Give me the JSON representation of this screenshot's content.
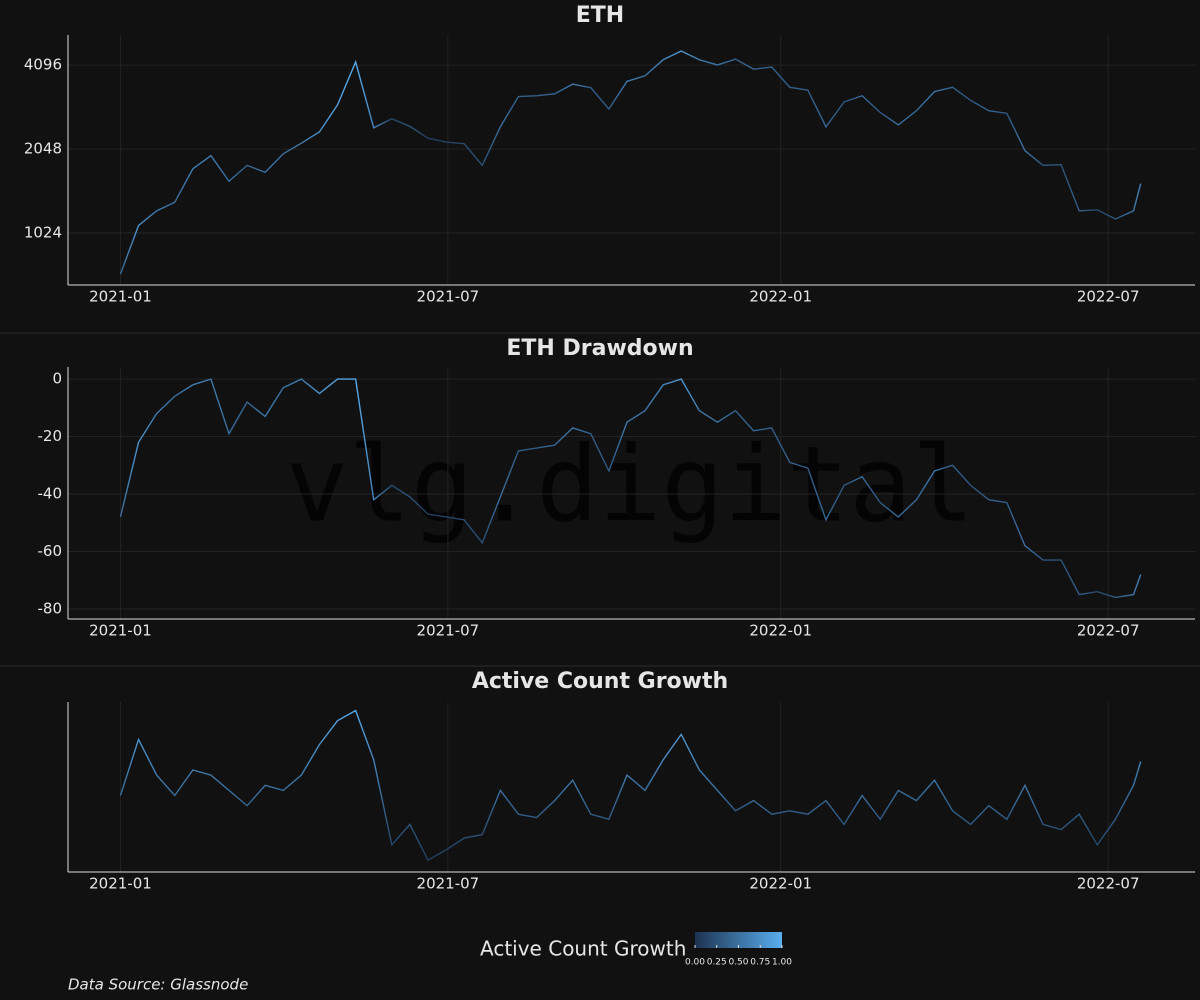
{
  "chart_data": [
    {
      "type": "line",
      "title": "ETH",
      "log_y": true,
      "grid": true,
      "xlim": [
        "2020-12-03",
        "2022-08-18"
      ],
      "xticks": [
        "2021-01",
        "2021-07",
        "2022-01",
        "2022-07"
      ],
      "ylim": [
        667,
        5250
      ],
      "yticks": [
        1024,
        2048,
        4096
      ],
      "x": [
        "2021-01-01",
        "2021-01-11",
        "2021-01-21",
        "2021-01-31",
        "2021-02-10",
        "2021-02-20",
        "2021-03-02",
        "2021-03-12",
        "2021-03-22",
        "2021-04-01",
        "2021-04-11",
        "2021-04-21",
        "2021-05-01",
        "2021-05-11",
        "2021-05-21",
        "2021-05-31",
        "2021-06-10",
        "2021-06-20",
        "2021-06-30",
        "2021-07-10",
        "2021-07-20",
        "2021-07-30",
        "2021-08-09",
        "2021-08-19",
        "2021-08-29",
        "2021-09-08",
        "2021-09-18",
        "2021-09-28",
        "2021-10-08",
        "2021-10-18",
        "2021-10-28",
        "2021-11-07",
        "2021-11-17",
        "2021-11-27",
        "2021-12-07",
        "2021-12-17",
        "2021-12-27",
        "2022-01-06",
        "2022-01-16",
        "2022-01-26",
        "2022-02-05",
        "2022-02-15",
        "2022-02-25",
        "2022-03-07",
        "2022-03-17",
        "2022-03-27",
        "2022-04-06",
        "2022-04-16",
        "2022-04-26",
        "2022-05-06",
        "2022-05-16",
        "2022-05-26",
        "2022-06-05",
        "2022-06-15",
        "2022-06-25",
        "2022-07-05",
        "2022-07-15",
        "2022-07-19"
      ],
      "values": [
        730,
        1090,
        1230,
        1320,
        1740,
        1940,
        1570,
        1790,
        1690,
        1970,
        2150,
        2360,
        2950,
        4200,
        2440,
        2630,
        2470,
        2240,
        2170,
        2140,
        1790,
        2460,
        3160,
        3180,
        3230,
        3500,
        3400,
        2850,
        3580,
        3750,
        4280,
        4600,
        4280,
        4100,
        4300,
        3960,
        4030,
        3410,
        3330,
        2460,
        3020,
        3180,
        2770,
        2500,
        2810,
        3290,
        3410,
        3060,
        2810,
        2750,
        2020,
        1790,
        1800,
        1230,
        1240,
        1150,
        1230,
        1540
      ]
    },
    {
      "type": "line",
      "title": "ETH Drawdown",
      "grid": true,
      "xlim": [
        "2020-12-03",
        "2022-08-18"
      ],
      "xticks": [
        "2021-01",
        "2021-07",
        "2022-01",
        "2022-07"
      ],
      "ylim": [
        -83.5,
        4.2
      ],
      "yticks": [
        -80,
        -60,
        -40,
        -20,
        0
      ],
      "x": [
        "2021-01-01",
        "2021-01-11",
        "2021-01-21",
        "2021-01-31",
        "2021-02-10",
        "2021-02-20",
        "2021-03-02",
        "2021-03-12",
        "2021-03-22",
        "2021-04-01",
        "2021-04-11",
        "2021-04-21",
        "2021-05-01",
        "2021-05-11",
        "2021-05-21",
        "2021-05-31",
        "2021-06-10",
        "2021-06-20",
        "2021-06-30",
        "2021-07-10",
        "2021-07-20",
        "2021-07-30",
        "2021-08-09",
        "2021-08-19",
        "2021-08-29",
        "2021-09-08",
        "2021-09-18",
        "2021-09-28",
        "2021-10-08",
        "2021-10-18",
        "2021-10-28",
        "2021-11-07",
        "2021-11-17",
        "2021-11-27",
        "2021-12-07",
        "2021-12-17",
        "2021-12-27",
        "2022-01-06",
        "2022-01-16",
        "2022-01-26",
        "2022-02-05",
        "2022-02-15",
        "2022-02-25",
        "2022-03-07",
        "2022-03-17",
        "2022-03-27",
        "2022-04-06",
        "2022-04-16",
        "2022-04-26",
        "2022-05-06",
        "2022-05-16",
        "2022-05-26",
        "2022-06-05",
        "2022-06-15",
        "2022-06-25",
        "2022-07-05",
        "2022-07-15",
        "2022-07-19"
      ],
      "values": [
        -48,
        -22,
        -12,
        -6,
        -2,
        0,
        -19,
        -8,
        -13,
        -3,
        0,
        -5,
        0,
        0,
        -42,
        -37,
        -41,
        -47,
        -48,
        -49,
        -57,
        -41,
        -25,
        -24,
        -23,
        -17,
        -19,
        -32,
        -15,
        -11,
        -2,
        0,
        -11,
        -15,
        -11,
        -18,
        -17,
        -29,
        -31,
        -49,
        -37,
        -34,
        -43,
        -48,
        -42,
        -32,
        -30,
        -37,
        -42,
        -43,
        -58,
        -63,
        -63,
        -75,
        -74,
        -76,
        -75,
        -68
      ]
    },
    {
      "type": "line",
      "title": "Active Count Growth",
      "grid": true,
      "xlim": [
        "2020-12-03",
        "2022-08-18"
      ],
      "xticks": [
        "2021-01",
        "2021-07",
        "2022-01",
        "2022-07"
      ],
      "ylim": [
        0,
        1
      ],
      "x": [
        "2021-01-01",
        "2021-01-11",
        "2021-01-21",
        "2021-01-31",
        "2021-02-10",
        "2021-02-20",
        "2021-03-02",
        "2021-03-12",
        "2021-03-22",
        "2021-04-01",
        "2021-04-11",
        "2021-04-21",
        "2021-05-01",
        "2021-05-11",
        "2021-05-21",
        "2021-05-31",
        "2021-06-10",
        "2021-06-20",
        "2021-06-30",
        "2021-07-10",
        "2021-07-20",
        "2021-07-30",
        "2021-08-09",
        "2021-08-19",
        "2021-08-29",
        "2021-09-08",
        "2021-09-18",
        "2021-09-28",
        "2021-10-08",
        "2021-10-18",
        "2021-10-28",
        "2021-11-07",
        "2021-11-17",
        "2021-11-27",
        "2021-12-07",
        "2021-12-17",
        "2021-12-27",
        "2022-01-06",
        "2022-01-16",
        "2022-01-26",
        "2022-02-05",
        "2022-02-15",
        "2022-02-25",
        "2022-03-07",
        "2022-03-17",
        "2022-03-27",
        "2022-04-06",
        "2022-04-16",
        "2022-04-26",
        "2022-05-06",
        "2022-05-16",
        "2022-05-26",
        "2022-06-05",
        "2022-06-15",
        "2022-06-25",
        "2022-07-05",
        "2022-07-15",
        "2022-07-19"
      ],
      "values": [
        0.45,
        0.78,
        0.57,
        0.45,
        0.6,
        0.57,
        0.48,
        0.39,
        0.51,
        0.48,
        0.57,
        0.75,
        0.89,
        0.95,
        0.66,
        0.16,
        0.28,
        0.07,
        0.13,
        0.2,
        0.22,
        0.48,
        0.34,
        0.32,
        0.42,
        0.54,
        0.34,
        0.31,
        0.57,
        0.48,
        0.66,
        0.81,
        0.6,
        0.48,
        0.36,
        0.42,
        0.34,
        0.36,
        0.34,
        0.42,
        0.28,
        0.45,
        0.31,
        0.48,
        0.42,
        0.54,
        0.36,
        0.28,
        0.39,
        0.31,
        0.51,
        0.28,
        0.25,
        0.34,
        0.16,
        0.31,
        0.51,
        0.65
      ]
    }
  ],
  "colorbar": {
    "title": "Active Count Growth",
    "colors": [
      "#1c3350",
      "#5aaef0"
    ],
    "ticks": [
      {
        "value": 0,
        "label": "0.00"
      },
      {
        "value": 0.25,
        "label": "0.25"
      },
      {
        "value": 0.5,
        "label": "0.50"
      },
      {
        "value": 0.75,
        "label": "0.75"
      },
      {
        "value": 1,
        "label": "1.00"
      }
    ]
  },
  "watermark": "vlg.digital",
  "source": "Data Source: Glassnode"
}
